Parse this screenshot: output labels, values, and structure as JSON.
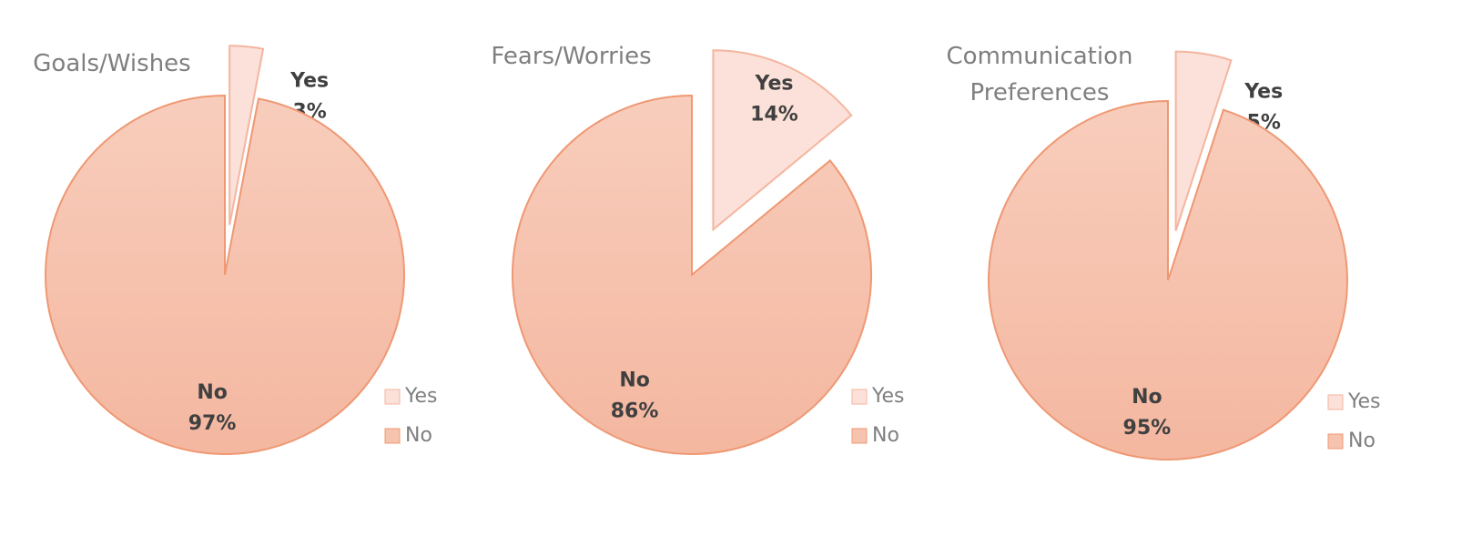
{
  "chart_data": [
    {
      "type": "pie",
      "title": "Goals/Wishes",
      "categories": [
        "Yes",
        "No"
      ],
      "values": [
        3,
        97
      ],
      "value_labels": [
        "3%",
        "97%"
      ],
      "colors": [
        "#fbe1d9",
        "#f6c3af"
      ],
      "legend": "right"
    },
    {
      "type": "pie",
      "title": "Fears/Worries",
      "categories": [
        "Yes",
        "No"
      ],
      "values": [
        14,
        86
      ],
      "value_labels": [
        "14%",
        "86%"
      ],
      "colors": [
        "#fbe1d9",
        "#f6c3af"
      ],
      "legend": "right"
    },
    {
      "type": "pie",
      "title": "Communication Preferences",
      "categories": [
        "Yes",
        "No"
      ],
      "values": [
        5,
        95
      ],
      "value_labels": [
        "5%",
        "95%"
      ],
      "colors": [
        "#fbe1d9",
        "#f6c3af"
      ],
      "legend": "right"
    }
  ]
}
